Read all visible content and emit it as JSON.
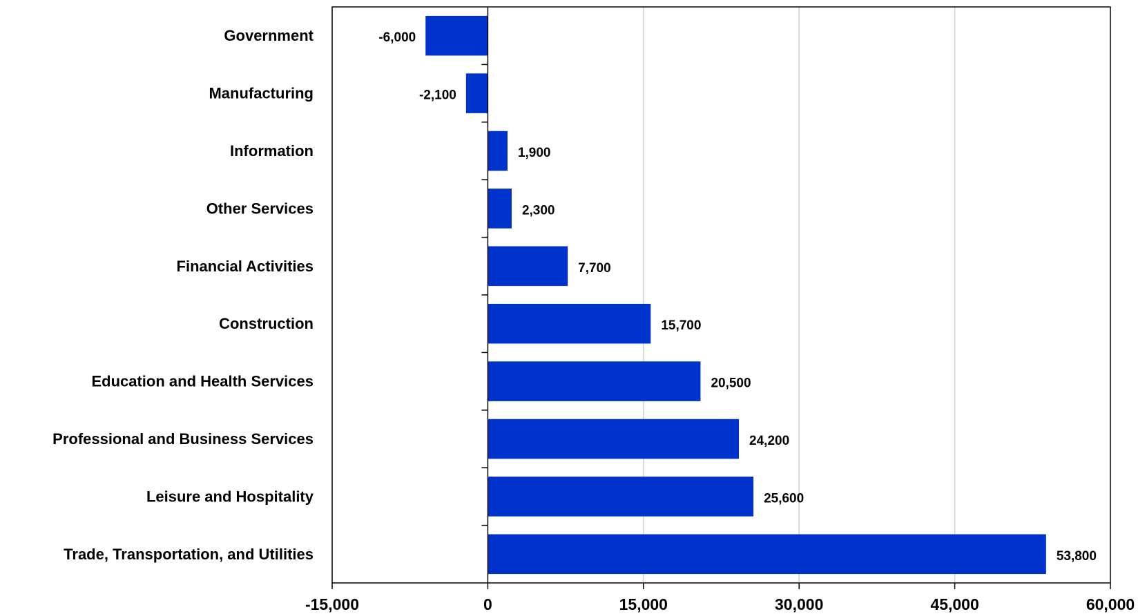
{
  "chart_data": {
    "type": "bar",
    "orientation": "horizontal",
    "title": "",
    "xlabel": "",
    "ylabel": "",
    "categories": [
      "Government",
      "Manufacturing",
      "Information",
      "Other Services",
      "Financial Activities",
      "Construction",
      "Education and Health Services",
      "Professional and Business Services",
      "Leisure and Hospitality",
      "Trade, Transportation, and Utilities"
    ],
    "values": [
      -6000,
      -2100,
      1900,
      2300,
      7700,
      15700,
      20500,
      24200,
      25600,
      53800
    ],
    "data_labels": [
      "-6,000",
      "-2,100",
      "1,900",
      "2,300",
      "7,700",
      "15,700",
      "20,500",
      "24,200",
      "25,600",
      "53,800"
    ],
    "xlim": [
      -15000,
      60000
    ],
    "x_ticks": [
      -15000,
      0,
      15000,
      30000,
      45000,
      60000
    ],
    "x_tick_labels": [
      "-15,000",
      "0",
      "15,000",
      "30,000",
      "45,000",
      "60,000"
    ],
    "grid": "vertical",
    "legend": "none",
    "colors": {
      "bar": "#0033cc",
      "grid": "#d0d0d0",
      "axis": "#000000"
    }
  }
}
